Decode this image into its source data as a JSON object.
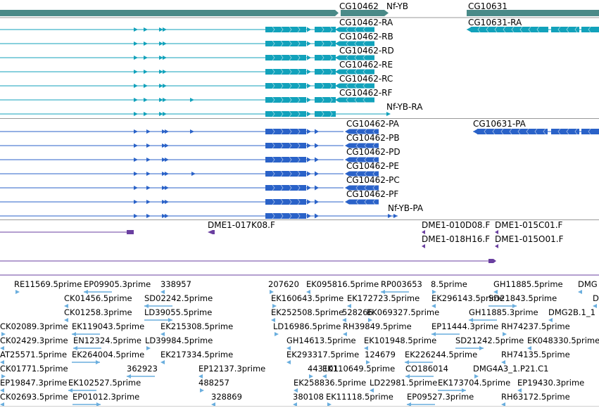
{
  "colors": {
    "gene": "#4a8a88",
    "teal": "#12a2bb",
    "blue": "#2a62c8",
    "purple": "#6a3fa0",
    "est": "#6aaede",
    "divider": "#9a9a9a"
  },
  "gene_track": {
    "labels": [
      "CG10462",
      "Nf-YB",
      "CG10631"
    ]
  },
  "teal_transcripts": {
    "labels": [
      "CG10462-RA",
      "CG10631-RA",
      "CG10462-RB",
      "CG10462-RD",
      "CG10462-RE",
      "CG10462-RC",
      "CG10462-RF",
      "Nf-YB-RA"
    ]
  },
  "blue_transcripts": {
    "labels": [
      "CG10462-PA",
      "CG10631-PA",
      "CG10462-PB",
      "CG10462-PD",
      "CG10462-PE",
      "CG10462-PC",
      "CG10462-PF",
      "Nf-YB-PA"
    ]
  },
  "clone_track": {
    "labels": [
      "DME1-017K08.F",
      "DME1-010D08.F",
      "DME1-015C01.F",
      "DME1-018H16.F",
      "DME1-015O01.F"
    ]
  },
  "est_track": {
    "rows": [
      [
        "RE11569.5prime",
        "EP09905.3prime",
        "338957",
        "207620",
        "EK095816.5prime",
        "RP003653",
        "8.5prime",
        "GH11885.5prime",
        "DMG"
      ],
      [
        "CK01456.5prime",
        "SD02242.5prime",
        "EK160643.5prime",
        "EK172723.5prime",
        "EK296143.5prime",
        "SD21843.5prime",
        "D"
      ],
      [
        "CK01258.3prime",
        "LD39055.5prime",
        "EK252508.5prime",
        "528266",
        "EK069327.5prime",
        "GH11885.3prime",
        "DMG2B.1_1"
      ],
      [
        "CK02089.3prime",
        "EK119043.5prime",
        "EK215308.5prime",
        "LD16986.5prime",
        "RH39849.5prime",
        "EP11444.3prime",
        "RH74237.5prime"
      ],
      [
        "CK02429.3prime",
        "EN12324.5prime",
        "LD39984.5prime",
        "GH14613.5prime",
        "EK101948.5prime",
        "SD21242.5prime",
        "EK048330.5prime"
      ],
      [
        "AT25571.5prime",
        "EK264004.5prime",
        "EK217334.5prime",
        "EK293317.5prime",
        "124679",
        "EK226244.5prime",
        "RH74135.5prime"
      ],
      [
        "CK01771.5prime",
        "362923",
        "EP12137.3prime",
        "443101",
        "EK110649.5prime",
        "CO186014",
        "DMG4A3_1.P21.C1"
      ],
      [
        "EP19847.3prime",
        "EK102527.5prime",
        "488257",
        "EK258836.5prime",
        "LD22981.5prime",
        "EK173704.5prime",
        "EP19430.3prime"
      ],
      [
        "CK02693.5prime",
        "EP01012.3prime",
        "328869",
        "380108",
        "EK11118.5prime",
        "EP09527.3prime",
        "RH63172.5prime"
      ]
    ]
  }
}
